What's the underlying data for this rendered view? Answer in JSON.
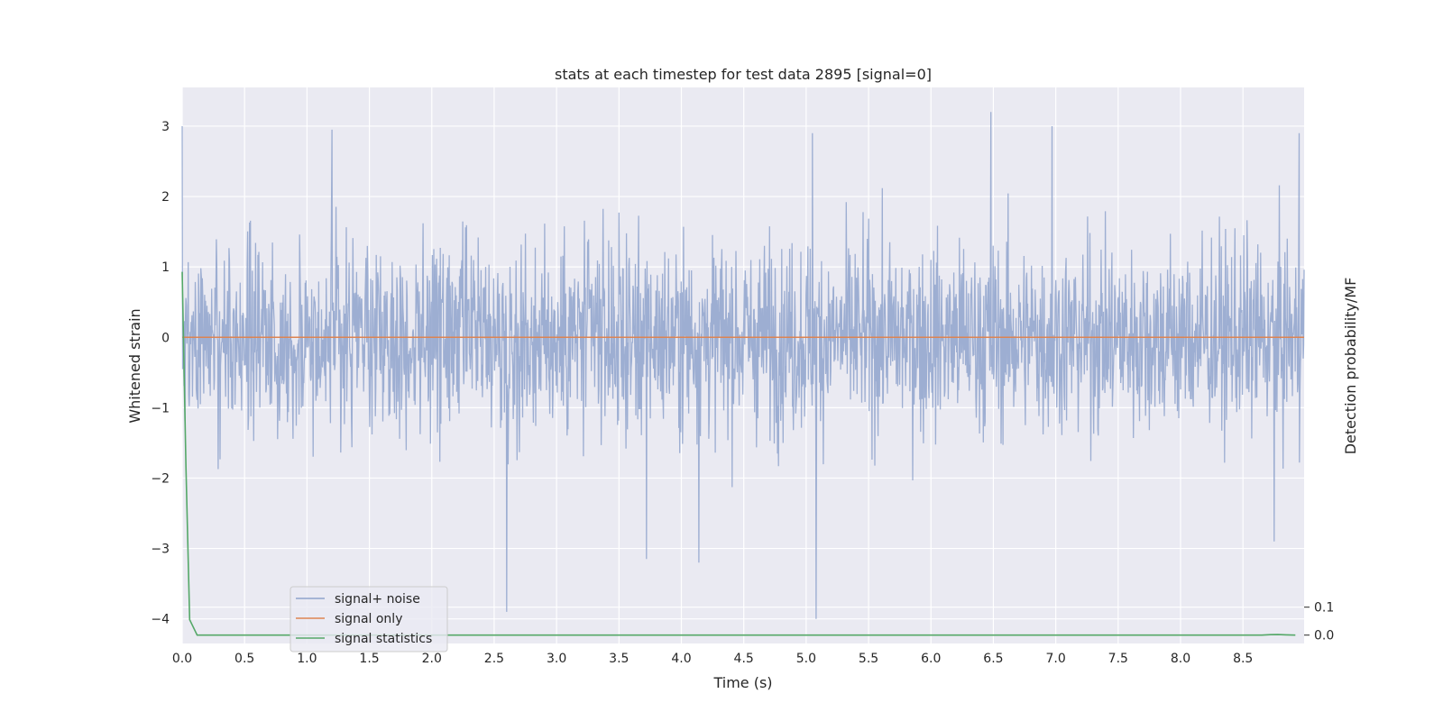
{
  "chart_data": {
    "type": "line",
    "title": "stats at each timestep for test data 2895 [signal=0]",
    "xlabel": "Time (s)",
    "ylabel": "Whitened strain",
    "ylabel_right": "Detection probability/MF",
    "xlim": [
      0,
      8.99
    ],
    "ylim": [
      -4.35,
      3.55
    ],
    "ylim_right": [
      -0.03,
      1.96
    ],
    "x_ticks": [
      "0.0",
      "0.5",
      "1.0",
      "1.5",
      "2.0",
      "2.5",
      "3.0",
      "3.5",
      "4.0",
      "4.5",
      "5.0",
      "5.5",
      "6.0",
      "6.5",
      "7.0",
      "7.5",
      "8.0",
      "8.5"
    ],
    "y_ticks": [
      "3",
      "2",
      "1",
      "0",
      "−1",
      "−2",
      "−3",
      "−4"
    ],
    "y_right_ticks": [
      "0.1",
      "0.0"
    ],
    "grid": true,
    "legend_position": "lower-left",
    "series": [
      {
        "name": "signal+ noise",
        "color": "#8fa3cc",
        "description": "dense noise series between about -1.9 and +1.9, peaks near ±3",
        "notable_points": [
          {
            "x": 0.0,
            "y": 3.0
          },
          {
            "x": 1.2,
            "y": 2.95
          },
          {
            "x": 2.6,
            "y": -3.9
          },
          {
            "x": 3.72,
            "y": -3.15
          },
          {
            "x": 4.14,
            "y": -3.2
          },
          {
            "x": 5.05,
            "y": 2.9
          },
          {
            "x": 5.08,
            "y": -4.0
          },
          {
            "x": 6.48,
            "y": 3.2
          },
          {
            "x": 6.97,
            "y": 3.0
          },
          {
            "x": 8.75,
            "y": -2.9
          },
          {
            "x": 8.95,
            "y": 2.9
          }
        ]
      },
      {
        "name": "signal only",
        "color": "#dd8452",
        "x": [
          0.0,
          8.99
        ],
        "y": [
          0.0,
          0.0
        ]
      },
      {
        "name": "signal statistics",
        "color": "#55a868",
        "axis": "right",
        "x": [
          0.0,
          0.03,
          0.06,
          0.12,
          8.6,
          8.65,
          8.72,
          8.78,
          8.85,
          8.92
        ],
        "y": [
          1.3,
          0.6,
          0.055,
          0.0,
          0.0,
          0.0,
          0.0015,
          0.002,
          0.001,
          0.0
        ]
      }
    ]
  }
}
